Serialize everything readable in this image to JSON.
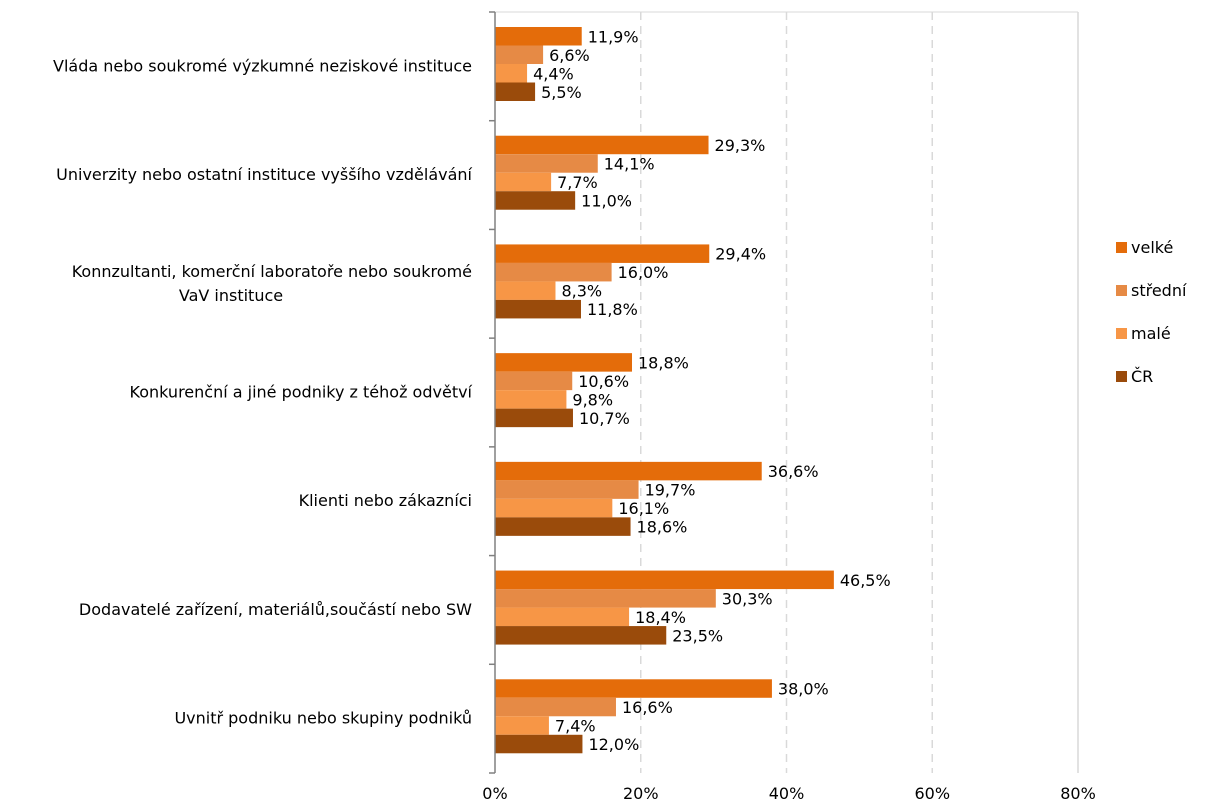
{
  "chart_data": {
    "type": "bar",
    "orientation": "horizontal",
    "categories": [
      [
        "Vláda  nebo soukromé výzkumné neziskové instituce"
      ],
      [
        "Univerzity nebo ostatní instituce vyššího vzdělávání"
      ],
      [
        "Konnzultanti, komerční laboratoře nebo soukromé",
        "VaV instituce"
      ],
      [
        "Konkurenční a jiné podniky z téhož odvětví"
      ],
      [
        "Klienti nebo zákazníci"
      ],
      [
        "Dodavatelé zařízení, materiálů,součástí nebo SW"
      ],
      [
        "Uvnitř podniku nebo skupiny podniků"
      ]
    ],
    "series": [
      {
        "name": "velké",
        "color": "#e46c0a",
        "values": [
          11.9,
          29.3,
          29.4,
          18.8,
          36.6,
          46.5,
          38.0
        ],
        "labels": [
          "11,9%",
          "29,3%",
          "29,4%",
          "18,8%",
          "36,6%",
          "46,5%",
          "38,0%"
        ]
      },
      {
        "name": "střední",
        "color": "#e68a45",
        "values": [
          6.6,
          14.1,
          16.0,
          10.6,
          19.7,
          30.3,
          16.6
        ],
        "labels": [
          "6,6%",
          "14,1%",
          "16,0%",
          "10,6%",
          "19,7%",
          "30,3%",
          "16,6%"
        ]
      },
      {
        "name": "malé",
        "color": "#f79646",
        "values": [
          4.4,
          7.7,
          8.3,
          9.8,
          16.1,
          18.4,
          7.4
        ],
        "labels": [
          "4,4%",
          "7,7%",
          "8,3%",
          "9,8%",
          "16,1%",
          "18,4%",
          "7,4%"
        ]
      },
      {
        "name": "ČR",
        "color": "#9a4b0b",
        "values": [
          5.5,
          11.0,
          11.8,
          10.7,
          18.6,
          23.5,
          12.0
        ],
        "labels": [
          "5,5%",
          "11,0%",
          "11,8%",
          "10,7%",
          "18,6%",
          "23,5%",
          "12,0%"
        ]
      }
    ],
    "xlim": [
      0,
      80
    ],
    "xticks": [
      0,
      20,
      40,
      60,
      80
    ],
    "xtick_labels": [
      "0%",
      "20%",
      "40%",
      "60%",
      "80%"
    ],
    "grid": "vertical dashed",
    "legend_position": "right"
  }
}
